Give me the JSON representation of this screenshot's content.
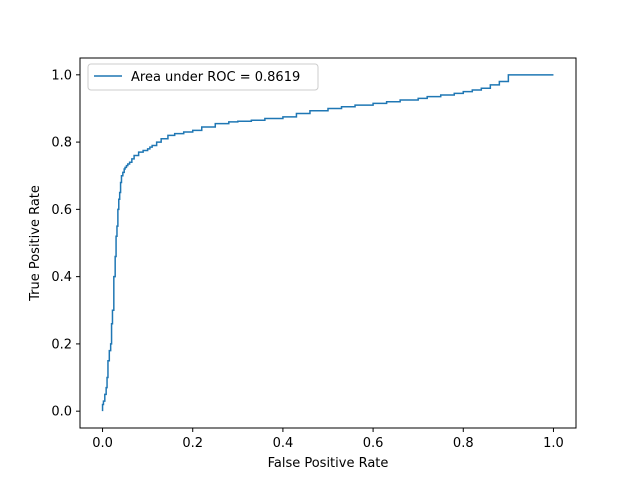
{
  "chart_data": {
    "type": "line",
    "title": "",
    "xlabel": "False Positive Rate",
    "ylabel": "True Positive Rate",
    "xlim": [
      -0.05,
      1.05
    ],
    "ylim": [
      -0.05,
      1.05
    ],
    "xticks": [
      0.0,
      0.2,
      0.4,
      0.6,
      0.8,
      1.0
    ],
    "xtick_labels": [
      "0.0",
      "0.2",
      "0.4",
      "0.6",
      "0.8",
      "1.0"
    ],
    "yticks": [
      0.0,
      0.2,
      0.4,
      0.6,
      0.8,
      1.0
    ],
    "ytick_labels": [
      "0.0",
      "0.2",
      "0.4",
      "0.6",
      "0.8",
      "1.0"
    ],
    "grid": false,
    "legend_position": "upper-left",
    "series": [
      {
        "name": "Area under ROC = 0.8619",
        "color": "#1f77b4",
        "x": [
          0.0,
          0.002,
          0.005,
          0.008,
          0.01,
          0.012,
          0.015,
          0.018,
          0.02,
          0.022,
          0.025,
          0.028,
          0.03,
          0.032,
          0.034,
          0.036,
          0.038,
          0.04,
          0.042,
          0.045,
          0.048,
          0.05,
          0.053,
          0.056,
          0.06,
          0.065,
          0.07,
          0.08,
          0.09,
          0.1,
          0.105,
          0.11,
          0.12,
          0.13,
          0.145,
          0.16,
          0.18,
          0.2,
          0.22,
          0.25,
          0.28,
          0.3,
          0.33,
          0.36,
          0.4,
          0.43,
          0.46,
          0.5,
          0.53,
          0.56,
          0.6,
          0.63,
          0.66,
          0.7,
          0.72,
          0.75,
          0.78,
          0.8,
          0.82,
          0.84,
          0.86,
          0.88,
          0.9,
          0.92,
          1.0
        ],
        "y": [
          0.0,
          0.02,
          0.03,
          0.05,
          0.07,
          0.1,
          0.15,
          0.18,
          0.2,
          0.26,
          0.3,
          0.4,
          0.46,
          0.52,
          0.55,
          0.6,
          0.63,
          0.65,
          0.68,
          0.7,
          0.71,
          0.72,
          0.725,
          0.73,
          0.735,
          0.74,
          0.75,
          0.76,
          0.77,
          0.775,
          0.78,
          0.785,
          0.79,
          0.8,
          0.81,
          0.82,
          0.825,
          0.83,
          0.835,
          0.845,
          0.855,
          0.86,
          0.862,
          0.865,
          0.87,
          0.875,
          0.885,
          0.893,
          0.9,
          0.905,
          0.91,
          0.915,
          0.92,
          0.925,
          0.93,
          0.935,
          0.94,
          0.945,
          0.95,
          0.955,
          0.96,
          0.97,
          0.98,
          1.0,
          1.0
        ]
      }
    ]
  }
}
